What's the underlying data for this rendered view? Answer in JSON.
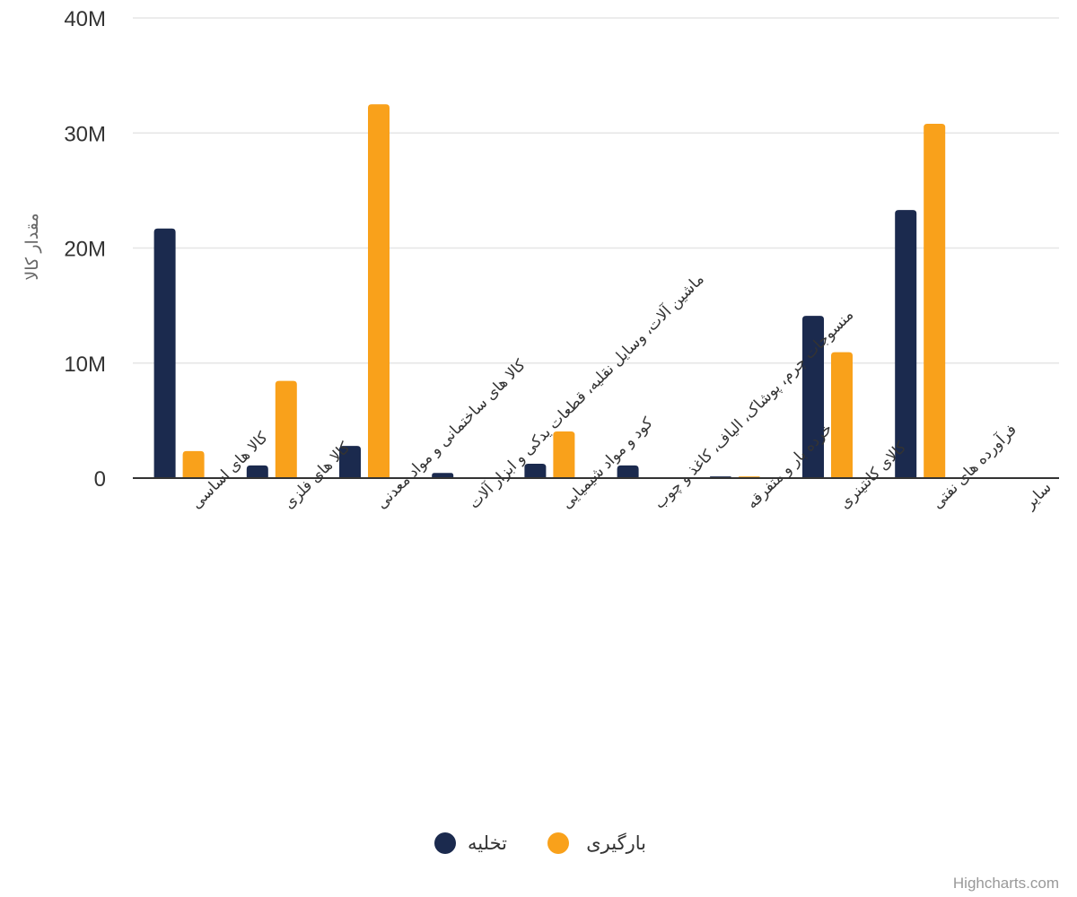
{
  "chart_data": {
    "type": "bar",
    "ylabel": "مقدار کالا",
    "ylim": [
      0,
      40000000
    ],
    "yticks": [
      0,
      10000000,
      20000000,
      30000000,
      40000000
    ],
    "ytick_labels": [
      "0",
      "10M",
      "20M",
      "30M",
      "40M"
    ],
    "grid": true,
    "legend_position": "bottom-center",
    "categories": [
      "کالا های اساسی",
      "کالا های فلزی",
      "کالا های ساختمانی و مواد معدنی",
      "ماشین آلات، وسایل نقلیه، قطعات یدکی و ابزار آلات",
      "کود و مواد شیمیایی",
      "منسوجات چرم، پوشاک، الیاف، کاغذ و چوب",
      "خرده بار و متفرقه",
      "کالای کانتینری",
      "فرآورده های نفتی",
      "سایر"
    ],
    "series": [
      {
        "name": "تخلیه",
        "color": "#1b2a4e",
        "values": [
          21700000,
          1100000,
          2800000,
          450000,
          1250000,
          1100000,
          150000,
          14100000,
          23300000,
          0
        ]
      },
      {
        "name": "بارگیری",
        "color": "#f9a11b",
        "values": [
          2350000,
          8450000,
          32500000,
          0,
          4050000,
          0,
          150000,
          10950000,
          30800000,
          0
        ]
      }
    ]
  },
  "credits": "Highcharts.com"
}
